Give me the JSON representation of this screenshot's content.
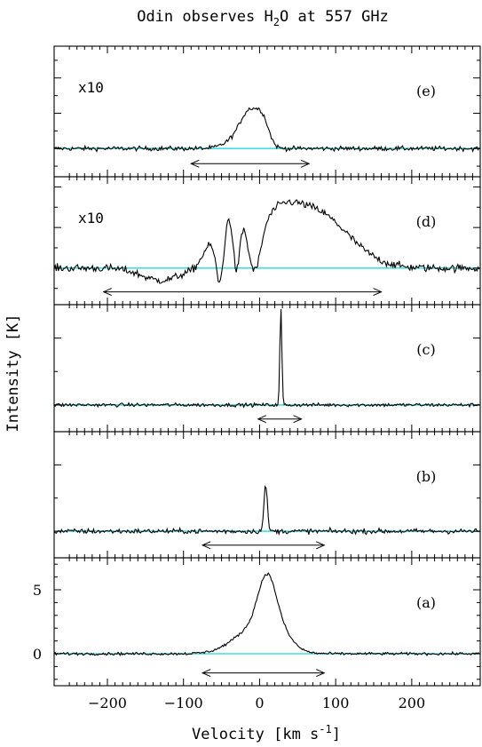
{
  "chart_data": {
    "type": "line",
    "title": "Odin observes H2O at 557 GHz",
    "title_parts": {
      "pre": "Odin observes H",
      "sub": "2",
      "post": "O at 557 GHz"
    },
    "xlabel": "Velocity [km s-1]",
    "xlabel_parts": {
      "pre": "Velocity [km s",
      "sup": "-1",
      "post": "]"
    },
    "ylabel": "Intensity [K]",
    "xlim": [
      -270,
      290
    ],
    "x_ticks": [
      -200,
      -100,
      0,
      100,
      200
    ],
    "y_ticks_bottom_panel": [
      0,
      5
    ],
    "baseline_color": "#40e0e0",
    "trace_color": "#000000",
    "grid": false,
    "panels": [
      {
        "label": "(e)",
        "scale_note": "x10",
        "ylim": [
          -1.6,
          5.8
        ],
        "baseline": 0,
        "arrow_range": [
          -90,
          65
        ],
        "series": [
          {
            "name": "",
            "peaks": [
              {
                "center": -12,
                "amp": 1.9,
                "width": 12,
                "shape": "gauss"
              },
              {
                "center": 5,
                "amp": 1.2,
                "width": 8,
                "shape": "gauss"
              },
              {
                "center": -30,
                "amp": 0.5,
                "width": 15,
                "shape": "gauss"
              }
            ],
            "noise": 0.12
          }
        ]
      },
      {
        "label": "(d)",
        "scale_note": "x10",
        "ylim": [
          -1.8,
          4.5
        ],
        "baseline": 0,
        "arrow_range": [
          -205,
          160
        ],
        "series": [
          {
            "name": "",
            "peaks": [
              {
                "center": 70,
                "amp": 2.8,
                "width": 45,
                "shape": "gauss"
              },
              {
                "center": 20,
                "amp": 1.4,
                "width": 25,
                "shape": "gauss"
              },
              {
                "center": -65,
                "amp": 1.1,
                "width": 10,
                "shape": "gauss"
              },
              {
                "center": -40,
                "amp": 2.2,
                "width": 5,
                "shape": "gauss"
              },
              {
                "center": -22,
                "amp": 1.4,
                "width": 5,
                "shape": "gauss"
              },
              {
                "center": -53,
                "amp": -1.4,
                "width": 4,
                "shape": "gauss"
              },
              {
                "center": -30,
                "amp": -1.2,
                "width": 4,
                "shape": "gauss"
              },
              {
                "center": -5,
                "amp": -1.6,
                "width": 7,
                "shape": "gauss"
              },
              {
                "center": -130,
                "amp": -0.6,
                "width": 25,
                "shape": "gauss"
              }
            ],
            "noise": 0.18
          }
        ]
      },
      {
        "label": "(c)",
        "scale_note": "",
        "ylim": [
          -0.8,
          3.0
        ],
        "baseline": 0,
        "arrow_range": [
          -2,
          55
        ],
        "series": [
          {
            "name": "",
            "peaks": [
              {
                "center": 28,
                "amp": 2.9,
                "width": 1.3,
                "shape": "gauss"
              }
            ],
            "noise": 0.05
          }
        ]
      },
      {
        "label": "(b)",
        "scale_note": "",
        "ylim": [
          -0.8,
          3.0
        ],
        "baseline": 0,
        "arrow_range": [
          -75,
          85
        ],
        "series": [
          {
            "name": "",
            "peaks": [
              {
                "center": 8,
                "amp": 1.4,
                "width": 2.2,
                "shape": "gauss"
              }
            ],
            "noise": 0.07
          }
        ]
      },
      {
        "label": "(a)",
        "scale_note": "",
        "ylim": [
          -2.5,
          7.5
        ],
        "baseline": 0,
        "arrow_range": [
          -75,
          85
        ],
        "series": [
          {
            "name": "",
            "peaks": [
              {
                "center": 10,
                "amp": 4.2,
                "width": 12,
                "shape": "gauss"
              },
              {
                "center": -5,
                "amp": 2.0,
                "width": 28,
                "shape": "gauss"
              },
              {
                "center": 30,
                "amp": 0.8,
                "width": 15,
                "shape": "gauss"
              }
            ],
            "noise": 0.1
          }
        ]
      }
    ]
  }
}
